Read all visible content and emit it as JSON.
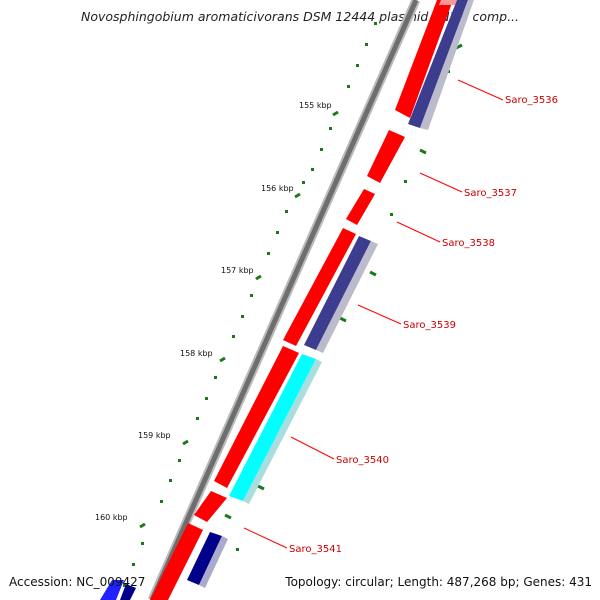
{
  "title": "Novosphingobium aromaticivorans DSM 12444 plasmid pNL2, comp...",
  "footer": {
    "accession": "Accession: NC_009427",
    "summary": "Topology: circular; Length: 487,268 bp; Genes: 431"
  },
  "ticks": [
    "155 kbp",
    "156 kbp",
    "157 kbp",
    "158 kbp",
    "159 kbp",
    "160 kbp"
  ],
  "genes": [
    "Saro_3536",
    "Saro_3537",
    "Saro_3538",
    "Saro_3539",
    "Saro_3540",
    "Saro_3541"
  ],
  "colors": {
    "forward_cds": "#ff0000",
    "reverse_cds": "#3d3d8f",
    "highlight": "#00ffff",
    "tick": "#1a7a1a",
    "label_line": "#ff0000",
    "backbone": "#777777"
  }
}
